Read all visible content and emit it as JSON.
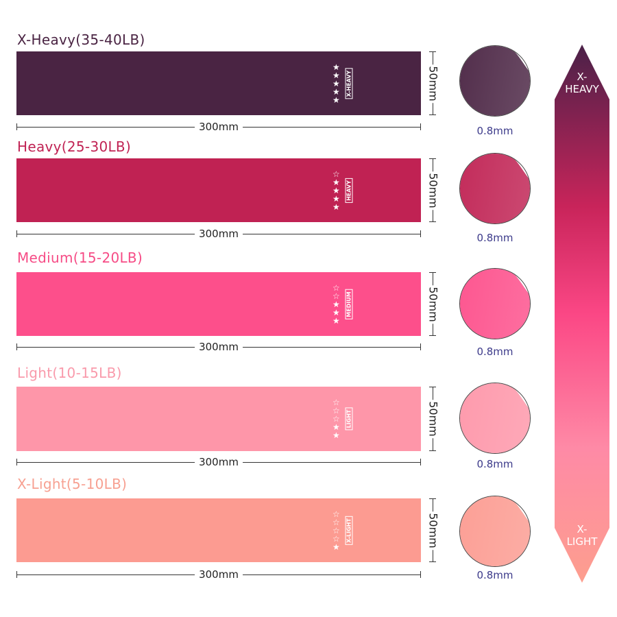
{
  "bands": [
    {
      "title": "X-Heavy(35-40LB)",
      "tag": "X-HEAVY",
      "stars_filled": 5,
      "stars_total": 5,
      "length": "300mm",
      "width": "50mm",
      "thickness": "0.8mm",
      "color": "#4a2443",
      "title_color": "#4a2443"
    },
    {
      "title": "Heavy(25-30LB)",
      "tag": "HEAVY",
      "stars_filled": 4,
      "stars_total": 5,
      "length": "300mm",
      "width": "50mm",
      "thickness": "0.8mm",
      "color": "#c02253",
      "title_color": "#c02253"
    },
    {
      "title": "Medium(15-20LB)",
      "tag": "MEDIUM",
      "stars_filled": 3,
      "stars_total": 5,
      "length": "300mm",
      "width": "50mm",
      "thickness": "0.8mm",
      "color": "#fd4f8b",
      "title_color": "#f64c86"
    },
    {
      "title": "Light(10-15LB)",
      "tag": "LIGHT",
      "stars_filled": 2,
      "stars_total": 5,
      "length": "300mm",
      "width": "50mm",
      "thickness": "0.8mm",
      "color": "#fe96a9",
      "title_color": "#f99aab"
    },
    {
      "title": "X-Light(5-10LB)",
      "tag": "X-LIGHT",
      "stars_filled": 1,
      "stars_total": 5,
      "length": "300mm",
      "width": "50mm",
      "thickness": "0.8mm",
      "color": "#fc9b91",
      "title_color": "#f7a091"
    }
  ],
  "scale": {
    "top_label_1": "X-",
    "top_label_2": "HEAVY",
    "bottom_label_1": "X-",
    "bottom_label_2": "LIGHT"
  }
}
